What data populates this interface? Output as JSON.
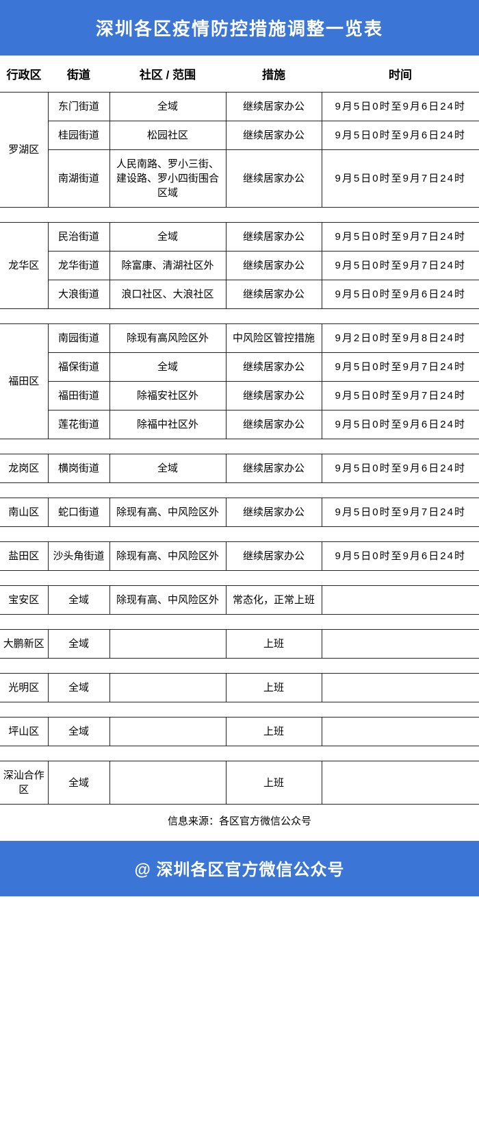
{
  "title": "深圳各区疫情防控措施调整一览表",
  "footer": "@ 深圳各区官方微信公众号",
  "source_label": "信息来源：各区官方微信公众号",
  "columns": {
    "district": "行政区",
    "street": "街道",
    "scope": "社区 / 范围",
    "measure": "措施",
    "time": "时间"
  },
  "groups": [
    {
      "district": "罗湖区",
      "rows": [
        {
          "street": "东门街道",
          "scope": "全域",
          "measure": "继续居家办公",
          "time": "9月5日0时至9月6日24时"
        },
        {
          "street": "桂园街道",
          "scope": "松园社区",
          "measure": "继续居家办公",
          "time": "9月5日0时至9月6日24时"
        },
        {
          "street": "南湖街道",
          "scope": "人民南路、罗小三街、建设路、罗小四街围合区域",
          "measure": "继续居家办公",
          "time": "9月5日0时至9月7日24时"
        }
      ]
    },
    {
      "district": "龙华区",
      "rows": [
        {
          "street": "民治街道",
          "scope": "全域",
          "measure": "继续居家办公",
          "time": "9月5日0时至9月7日24时"
        },
        {
          "street": "龙华街道",
          "scope": "除富康、清湖社区外",
          "measure": "继续居家办公",
          "time": "9月5日0时至9月7日24时"
        },
        {
          "street": "大浪街道",
          "scope": "浪口社区、大浪社区",
          "measure": "继续居家办公",
          "time": "9月5日0时至9月6日24时"
        }
      ]
    },
    {
      "district": "福田区",
      "rows": [
        {
          "street": "南园街道",
          "scope": "除现有高风险区外",
          "measure": "中风险区管控措施",
          "time": "9月2日0时至9月8日24时"
        },
        {
          "street": "福保街道",
          "scope": "全域",
          "measure": "继续居家办公",
          "time": "9月5日0时至9月7日24时"
        },
        {
          "street": "福田街道",
          "scope": "除福安社区外",
          "measure": "继续居家办公",
          "time": "9月5日0时至9月7日24时"
        },
        {
          "street": "莲花街道",
          "scope": "除福中社区外",
          "measure": "继续居家办公",
          "time": "9月5日0时至9月6日24时"
        }
      ]
    },
    {
      "district": "龙岗区",
      "rows": [
        {
          "street": "横岗街道",
          "scope": "全域",
          "measure": "继续居家办公",
          "time": "9月5日0时至9月6日24时"
        }
      ]
    },
    {
      "district": "南山区",
      "rows": [
        {
          "street": "蛇口街道",
          "scope": "除现有高、中风险区外",
          "measure": "继续居家办公",
          "time": "9月5日0时至9月7日24时"
        }
      ]
    },
    {
      "district": "盐田区",
      "rows": [
        {
          "street": "沙头角街道",
          "scope": "除现有高、中风险区外",
          "measure": "继续居家办公",
          "time": "9月5日0时至9月6日24时"
        }
      ]
    },
    {
      "district": "宝安区",
      "rows": [
        {
          "street": "全域",
          "scope": "除现有高、中风险区外",
          "measure": "常态化，正常上班",
          "time": ""
        }
      ]
    },
    {
      "district": "大鹏新区",
      "rows": [
        {
          "street": "全域",
          "scope": "",
          "measure": "上班",
          "time": ""
        }
      ]
    },
    {
      "district": "光明区",
      "rows": [
        {
          "street": "全域",
          "scope": "",
          "measure": "上班",
          "time": ""
        }
      ]
    },
    {
      "district": "坪山区",
      "rows": [
        {
          "street": "全域",
          "scope": "",
          "measure": "上班",
          "time": ""
        }
      ]
    },
    {
      "district": "深汕合作区",
      "rows": [
        {
          "street": "全域",
          "scope": "",
          "measure": "上班",
          "time": ""
        }
      ]
    }
  ],
  "colors": {
    "header_bg": "#3b76d6",
    "header_text": "#ffffff",
    "border": "#222222",
    "body_text": "#000000",
    "background": "#ffffff"
  }
}
